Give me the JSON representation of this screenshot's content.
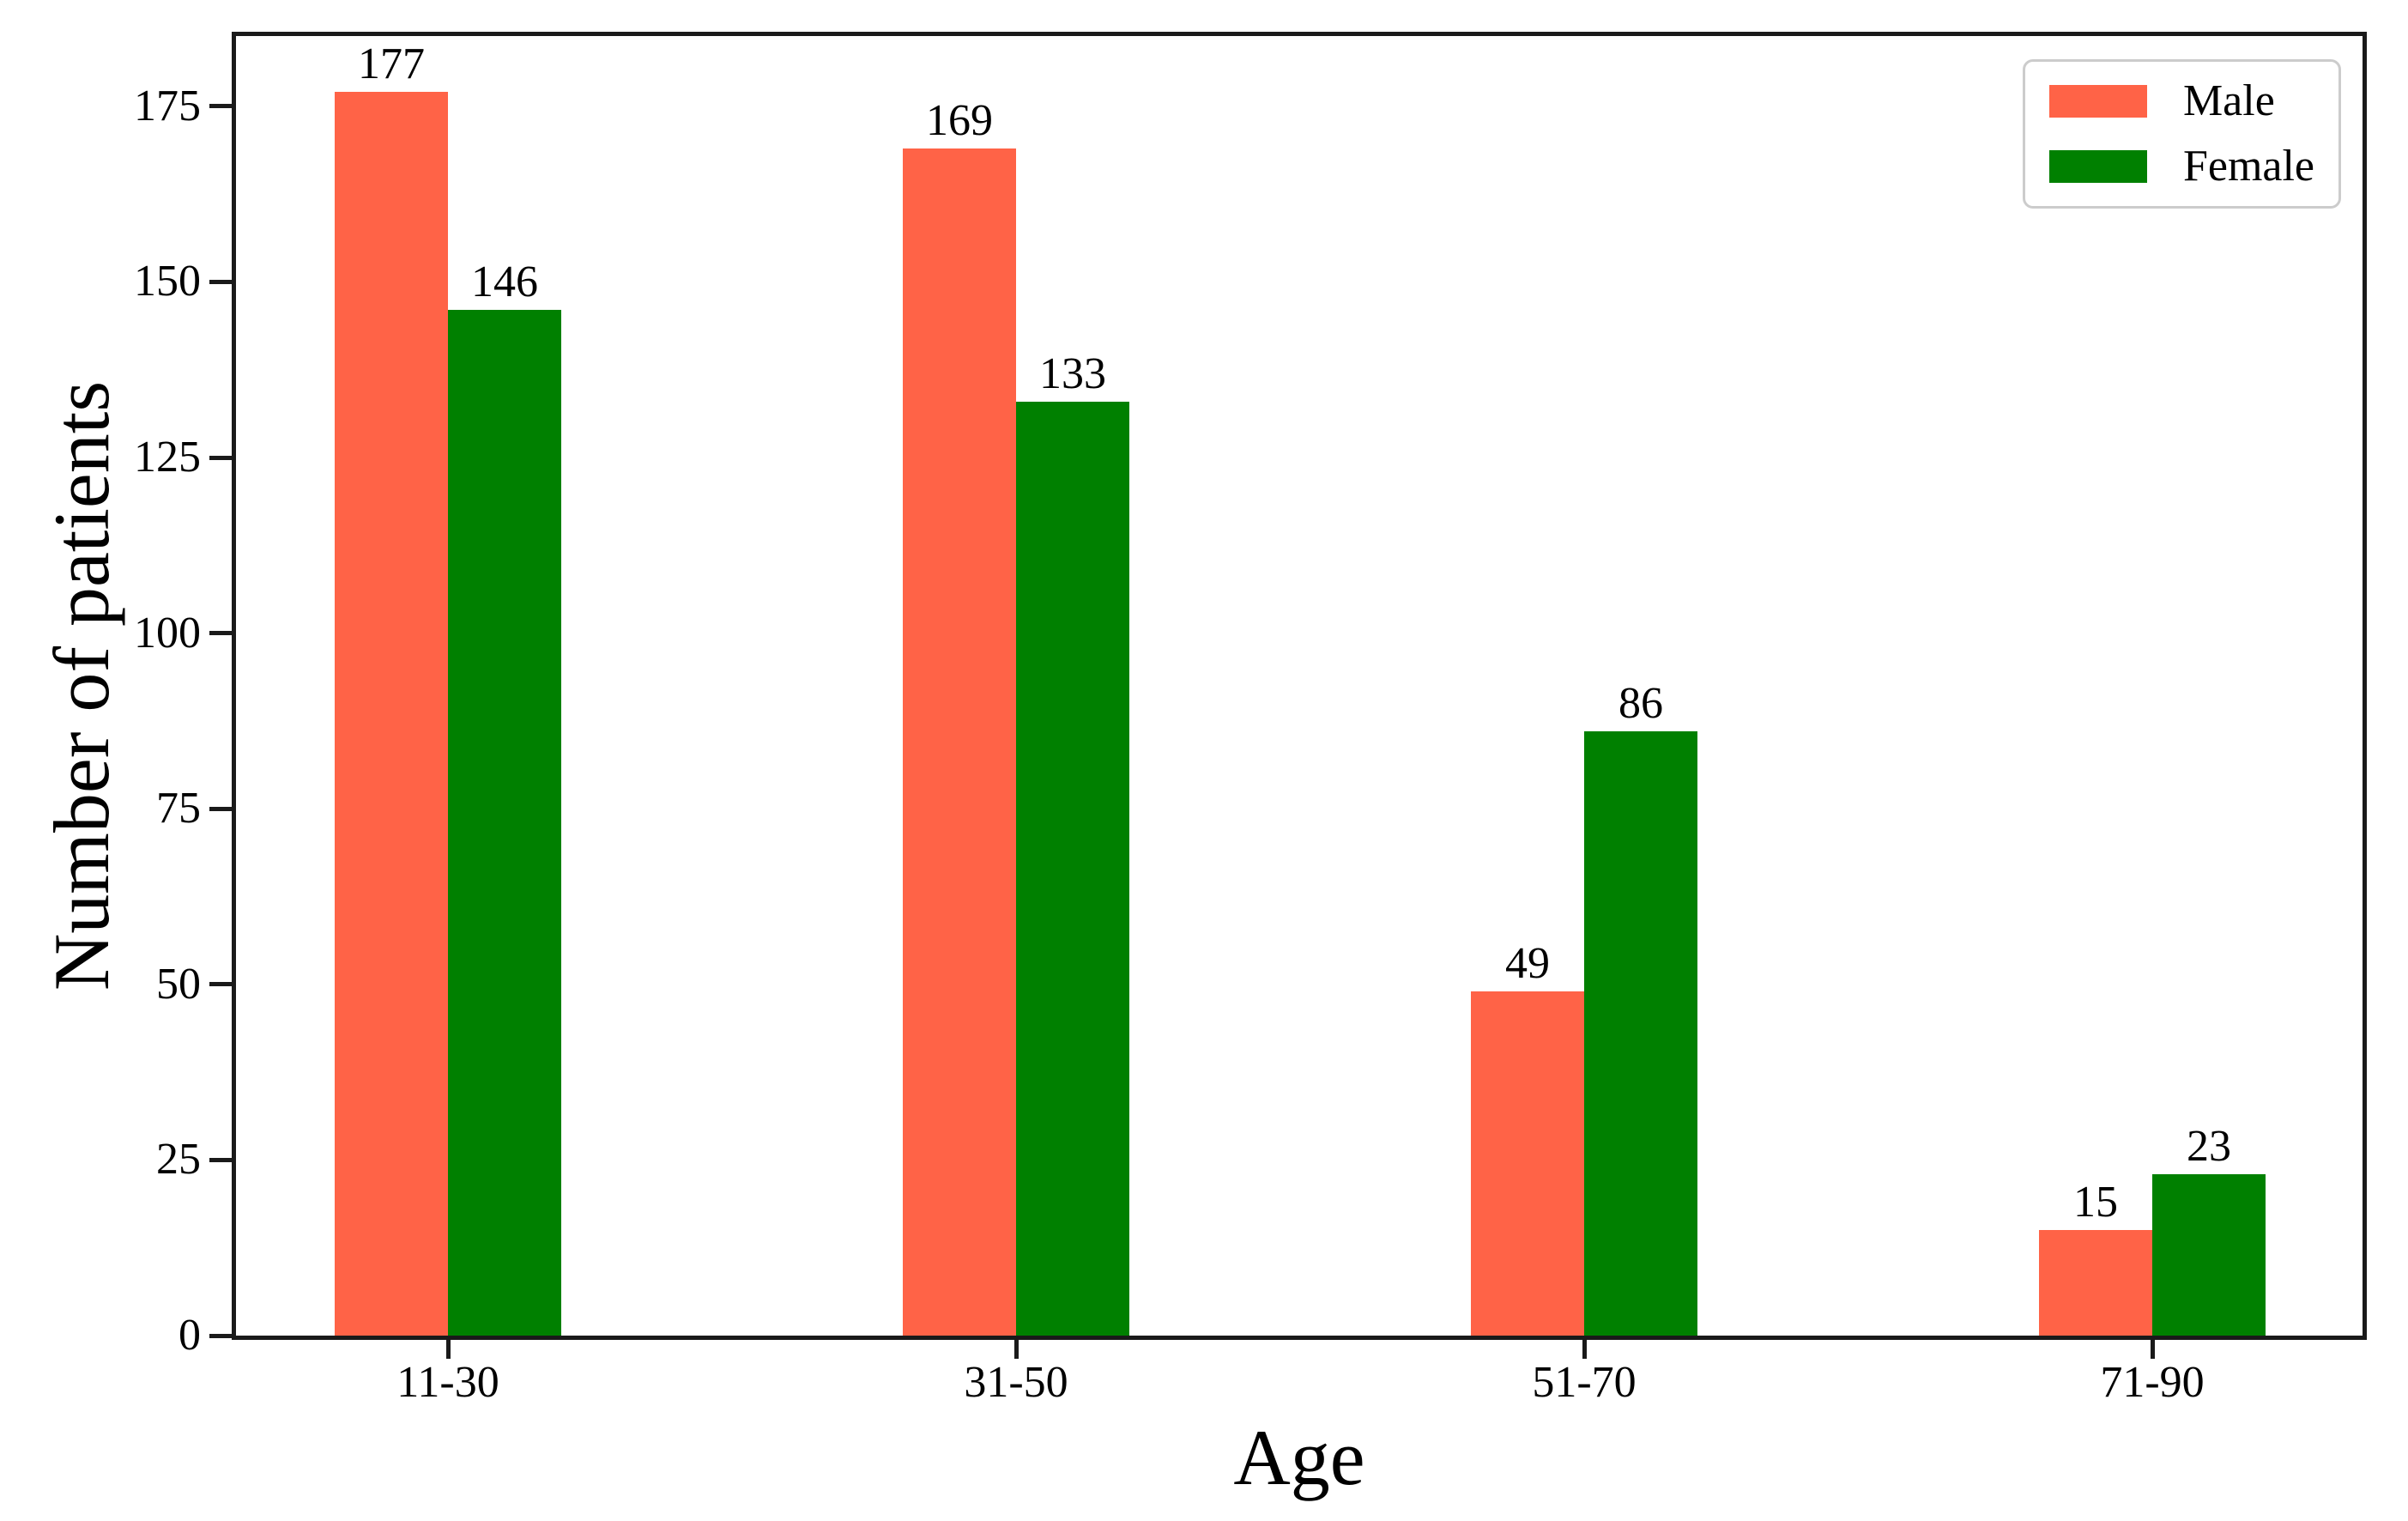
{
  "chart_data": {
    "type": "bar",
    "title": "",
    "xlabel": "Age",
    "ylabel": "Number of patients",
    "categories": [
      "11-30",
      "31-50",
      "51-70",
      "71-90"
    ],
    "series": [
      {
        "name": "Male",
        "color": "#ff6347",
        "values": [
          177,
          169,
          49,
          15
        ]
      },
      {
        "name": "Female",
        "color": "#008000",
        "values": [
          146,
          133,
          86,
          23
        ]
      }
    ],
    "ylim": [
      0,
      185
    ],
    "yticks": [
      0,
      25,
      50,
      75,
      100,
      125,
      150,
      175
    ],
    "bar_value_labels": true,
    "grid": false,
    "legend": {
      "position": "upper right",
      "labels": [
        "Male",
        "Female"
      ]
    }
  }
}
